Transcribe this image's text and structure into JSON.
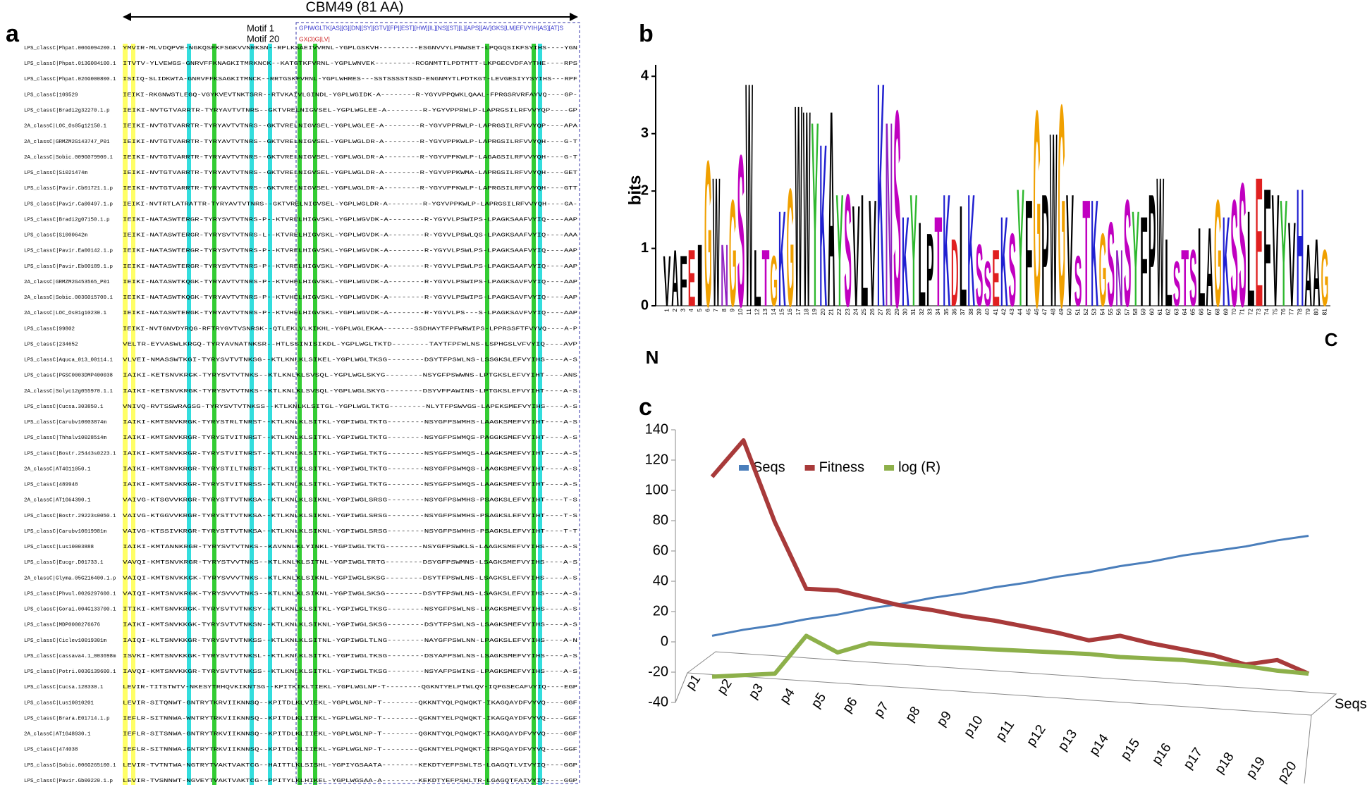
{
  "panel_labels": [
    "a",
    "b",
    "c"
  ],
  "alignment": {
    "title": "CBM49 (81 AA)",
    "motifs": [
      "Motif  1",
      "Motif 20"
    ],
    "patterns": [
      "GPIWGLTK[AS][G][DN][SY][GTV][FP][EST][HW][IL][NS][ST][L][APS][AV]GKS[LM]EFVYIH[AS][AT]S",
      "GX(3)G[LV]"
    ],
    "rows": [
      {
        "name": "LPS_classC|Phpat.006G094200.1",
        "seq": "YMVIR-MLVDQPVE-NGKQSFKFSGKVVNRKSN--RPLKSAEIVVRNL-YGPLGSKVH---------ESGNVVYLPNWSET-LPQGQSIKFSYIHS----YGN"
      },
      {
        "name": "LPS_classC|Phpat.013G084100.1",
        "seq": "ITVTV-YLVEWGS-GNRVFFKNAGKITMRKNCK--KATGTKFVRNL-YGPLWNVEK---------RCGNMTTLPDTMTT-LKPGECVDFAYTHE----RPS"
      },
      {
        "name": "LPS_classC|Phpat.026G000800.1",
        "seq": "ISIIQ-SLIDKWTA-GNRVFFKSAGKITMNCK--RRTGSKFVRNL-YGPLWHRES---SSTSSSSTSSD-ENGNMYTLPDTKGT-LEVGESIYYSYIHS---RPF"
      },
      {
        "name": "LPS_classC|109529",
        "seq": "IEIKI-RKGNWSTLEGQ-VGYKVEVTNKTSRR--RTVKAIVLGINDL-YGPLWGIDK-A--------R-YGYVPPQWKLQAAL-FPRGSRVRFAYVQ----GP-"
      },
      {
        "name": "LPS_classC|Bradi2g32270.1.p",
        "seq": "IEIKI-NVTGTVARRTR-TYRYAVTVTNRS--GKTVRELNIGVSEL-YGPLWGLEE-A--------R-YGYVPPRWLP-LAPRGSILRFVVYQP----GP"
      },
      {
        "name": "2A_classC|LOC_Os05g12150.1",
        "seq": "IEIKI-NVTGTVARRTR-TYRYAVTVTNRS--GKTVRELNIGVSEL-YGPLWGLEE-A--------R-YGYVPPRWLP-LAPRGSILRFVVYQP----APA"
      },
      {
        "name": "2A_classC|GRMZM2G143747_P01",
        "seq": "IEIKI-NVTGTVARRTR-TYRYAVTVTNRS--GKTVRELNIGVSEL-YGPLWGLDR-A--------R-YGYVPPKWLP-LAPRGSILRFVVYQH----G-T"
      },
      {
        "name": "2A_classC|Sobic.009G079900.1",
        "seq": "IEIKI-NVTGTVARRTR-TYRYAVTVTNRS--GKTVRELNIGVSEL-YGPLWGLDR-A--------R-YGYVPPKWLP-LAGAGSILRFVVYQH----G-T"
      },
      {
        "name": "LPS_classC|Si021474m",
        "seq": "IEIKI-NVTGTVARRTR-TYRYAVTVTNRS--GKTVRELNIGVSEL-YGPLWGLDR-A--------R-YGYVPPKWMA-LAPRGSILRFVVYQH----GET"
      },
      {
        "name": "LPS_classC|Pavir.Cb01721.1.p",
        "seq": "IEIKI-NVTGTVARRTR-TYRYAVTVTNRS--GKTVRELNIGVSEL-YGPLWGLDR-A--------R-YGYVPPKWLP-LAPRGSILRFVVYQH----GTT"
      },
      {
        "name": "LPS_classC|Pavir.Ca00497.1.p",
        "seq": "IEIKI-NVTRTLATRATTR-TYRYAVTVTNRS--GKTVRELNIGVSEL-YGPLWGLDR-A--------R-YGYVPPKWLP-LAPRGSILRFVVYQH----GA-"
      },
      {
        "name": "LPS_classC|Bradi2g07150.1.p",
        "seq": "IEIKI-NATASWTERGR-TYRYSVTVTNRS-P--KTVRELHIGVSKL-YGPLWGVDK-A--------R-YGYVLPSWIPS-LPAGKSAAFVYIQ----AAP"
      },
      {
        "name": "LPS_classC|Si000642m",
        "seq": "IEIKI-NATASWTERGR-TYRYSVTVTNRS-L--KTVRELHIGVSKL-YGPLWGVDK-A--------R-YGYVLPSWLQS-LPAGKSAAFVYIQ----AAA"
      },
      {
        "name": "LPS_classC|Pavir.Ea00142.1.p",
        "seq": "IEIKI-NATASWTERGR-TYRYSVTVTNRS-P--KTVRELHIGVSKL-YGPLWGVDK-A--------R-YGYVLPSWLPS-LPAGKSAAFVYIQ----AAP"
      },
      {
        "name": "LPS_classC|Pavir.Eb00189.1.p",
        "seq": "IEIKI-NATASWTERGR-TYRYSVTVTNRS-P--KTVRELHIGVSKL-YGPLWGVDK-A--------R-YGYVLPSWLPS-LPAGKSAAFVYIQ----AAP"
      },
      {
        "name": "2A_classC|GRMZM2G453565_P01",
        "seq": "IEIKI-NATASWTKQGK-TYRYAVTVTNRS-P--KTVHELHIGVSKL-YGPLWGVDK-A--------R-YGYVLPSWIPS-LPAGKSAVFVYIQ----AAP"
      },
      {
        "name": "2A_classC|Sobic.003G015700.1",
        "seq": "IEIKI-NATASWTKQGK-TYRYAVTVTNRS-P--KTVHELHIGVSKL-YGPLWGVDK-A--------R-YGYVLPSWIPS-LPAGKSAVFVYIQ----AAP"
      },
      {
        "name": "2A_classC|LOC_Os01g10230.1",
        "seq": "IEIKI-NATASWTERGK-TYRYAVTVTNRS-P--KTVHELHIGVSKL-YGPLWGVDK-A--------R-YGYVLPS---S-LPAGKSAVFVYIQ----AAP"
      },
      {
        "name": "LPS_classC|99802",
        "seq": "IEIKI-NVTGNVDYRQG-RFTRYGVTVSNRSK--QTLEKLVLKIKHL-YGPLWGLEKAA-------SSDHAYTFPFWRWIPS-LPPRSSFTFVYVQ----A-P"
      },
      {
        "name": "LPS_classC|234652",
        "seq": "VELTR-EYVASWLKRGQ-TYRYAVNATNKSR--HTLSSINISIKDL-YGPLWGLTKTD--------TAYTFPFWLNS-LSPHGSLVFVYIQ----AVP"
      },
      {
        "name": "LPS_classC|Aquca_013_00114.1",
        "seq": "VLVEI-NMASSWTKGI-TYRYSVTVTNKSG--KTLKNLKLSIKEL-YGPLWGLTKSG--------DSYTFPSWLNS-LSSGKSLEFVYIHS----A-S"
      },
      {
        "name": "LPS_classC|PGSC0003DMP400038",
        "seq": "IAIKI-KETSNVKRGK-TYRYSVTVTNKS--KTLKNLKLSVSQL-YGPLWGLSKYG--------NSYGFPSWWNS-LPTGKSLEFVYIHT----ANS"
      },
      {
        "name": "2A_classC|Solyc12g055970.1.1",
        "seq": "IAIKI-KETSNVKRGK-TYRYSVTVTNKS--KTLKNLKLSVSQL-YGPLWGLSKYG--------DSYVFPAWINS-LPTGKSLEFVYIHT----A-S"
      },
      {
        "name": "LPS_classC|Cucsa.303850.1",
        "seq": "VNIVQ-RVTSSWRAGSG-TYRYSVTVTNKSS--KTLKNLKLSITGL-YGPLWGLTKTG--------NLYTFPSWVGS-LAPEKSMEFVYIHS----A-S"
      },
      {
        "name": "LPS_classC|Carubv10003874m",
        "seq": "IAIKI-KMTSNVKRGK-TYRYSTRLTNRST--KTLKNLKLSITKL-YGPIWGLTKTG--------NSYGFPSWMHS-LAAGKSMEFVYIHT----A-S"
      },
      {
        "name": "LPS_classC|Thhalv10028514m",
        "seq": "IAIKI-KMTSNVKRGR-TYRYSTVITNRST--KTLKNLKLSITKL-YGPIWGLTKTG--------NSYGFPSWMQS-PAGGKSMEFVYIHT----A-S"
      },
      {
        "name": "LPS_classC|Bostr.25443s0223.1",
        "seq": "IAIKI-KMTSNVKRGR-TYRYSTVITNRST--KTLKNLKLSITKL-YGPIWGLTKTG--------NSYGFPSWMQS-LAAGKSMEFVYIHT----A-S"
      },
      {
        "name": "2A_classC|AT4G11050.1",
        "seq": "IAIKI-KMTSNVKRGR-TYRYSTILTNRST--KTLKILKLSITKL-YGPIWGLTKTG--------NSYGFPSWMQS-LAAGKSMEFVYIHT----A-S"
      },
      {
        "name": "LPS_classC|489948",
        "seq": "IAIKI-KMTSNVKRGR-TYRYSTVITNRSS--KTLKNLKLSITKL-YGPIWGLTKTG--------NSYGFPSWMQS-LAAGKSMEFVYIHT----A-S"
      },
      {
        "name": "2A_classC|AT1G64390.1",
        "seq": "VAIVG-KTSGVVKRGR-TYRYSTTVTNKSA--KTLKNLKLSIKNL-YGPIWGLSRSG--------NSYGFPSWMHS-PSAGKSLEFVYIHT----T-S"
      },
      {
        "name": "LPS_classC|Bostr.29223s0050.1",
        "seq": "VAIVG-KTGGVVKRGR-TYRYSTTVTNKSA--KTLKNLKLSIKNL-YGPIWGLSRSG--------NSYGFPSWMHS-PSAGKSLEFVYIHT----T-S"
      },
      {
        "name": "LPS_classC|Carubv10019981m",
        "seq": "VAIVG-KTSSIVKRGR-TYRYSTTVTNKSA--KTLKNLKLSIKNL-YGPIWGLSRSG--------NSYGFPSWMHS-PSAGKSLEFVYIHT----T-T"
      },
      {
        "name": "LPS_classC|Lus10003888",
        "seq": "IAIKI-KMTANNKRGR-TYRYSVTVTNKS--KAVNNLKLYINKL-YGPIWGLTKTG--------NSYGFPSWKLS-LAAGKSMEFVYIHS----A-S"
      },
      {
        "name": "LPS_classC|Eucgr.D01733.1",
        "seq": "VAVQI-KMTSNVKRGR-TYRYSTVVTNKS--KTLKNLKLSITNL-YGPIWGLTRTG--------DSYGFPSWMNS-LSAGKSMEFVYIHS----A-S"
      },
      {
        "name": "2A_classC|Glyma.05G216400.1.p",
        "seq": "VAIQI-KMTSNVKKGK-TYRYSVVVTNKS--KTLKNLKLSIKNL-YGPIWGLSKSG--------DSYTFPSWLNS-LSAGKSLEFVYIHS----A-S"
      },
      {
        "name": "LPS_classC|Phvul.002G297600.1",
        "seq": "VAIQI-KMTSNVKRGK-TYRYSVVVTNKS--KTLKNLKLSIKNL-YGPIWGLSKSG--------DSYTFPSWLNS-LSAGKSLEFVYIHS----A-S"
      },
      {
        "name": "LPS_classC|Gorai.004G133700.1",
        "seq": "ITIKI-KMTSNVKRGK-TYRYSVTVTNKSY--KTLKNLKLSITKL-YGPIWGLTKSG--------NSYGFPSWLNS-LPAGKSMEFVYIHS----A-S"
      },
      {
        "name": "LPS_classC|MDP0000276676",
        "seq": "IAIKI-KMTSNVKKGK-TYRYSVTVTNKSN--KTLKNLKLSIKNL-YGPIWGLSKSG--------DSYTFPSWLNS-LSAGKSMEFVYIHS----A-S"
      },
      {
        "name": "LPS_classC|Ciclev10019301m",
        "seq": "IAIQI-KLTSNVKKGR-TYRYSVTVTNKSS--KTLKNLKLSITNL-YGPIWGLTLNG--------NAYGFPSWLNN-LPAGKSLEFVYIHS----A-N"
      },
      {
        "name": "LPS_classC|cassava4.1_003698m",
        "seq": "ISVKI-KMTSNVKKGK-TYRYSVTVTNKSL--KTLKNLKLSITKL-YGPIWGLTKSG--------DSYAFPSWLNS-LSAGKSMEFVYIHS----A-S"
      },
      {
        "name": "LPS_classC|Potri.003G139600.1",
        "seq": "IAVQI-KMTSNVKKGR-TYRYSVTVTNKSS--KTLKNLKLSITKL-YGPIWGLTKSG--------NSYAFPSWINS-LPAGKSMEFVYIHS----A-S"
      },
      {
        "name": "LPS_classC|Cucsa.128330.1",
        "seq": "LEVIR-TITSTWTV-NKESYTRHQVKIKNTSG--KPITKIKLTIEKL-YGPLWGLNP-T--------QGKNTYELPTWLQV-IQPGSECAFVYIQ----EGP"
      },
      {
        "name": "LPS_classC|Lus10010201",
        "seq": "LEVIR-SITQNWT-GNTRYTKRVIIKNNSQ--KPITDLKLVIEKL-YGPLWGLNP-T--------QKKNTYQLPQWQKT-IKAGQAYDFVYVQ----GGF"
      },
      {
        "name": "LPS_classC|Brara.E01714.1.p",
        "seq": "IEFLR-SITNNWA-WNTRYTRKVIIKNNSQ--KPITDLKLIIEKL-YGPLWGLNP-T--------QGKNTYELPQWQKT-IKAGQAYDFVYVQ----GGF"
      },
      {
        "name": "2A_classC|AT1G48930.1",
        "seq": "IEFLR-SITSNWA-GNTRYTRKVIIKNNSQ--KPITDLKLIIEKL-YGPLWGLNP-T--------QGKNTYQLPQWQKT-IKAGQAYDFVYVQ----GGF"
      },
      {
        "name": "LPS_classC|474038",
        "seq": "IEFLR-SITNNWA-GNTRYTRKVIIKNNSQ--KPITDLKLIIEKL-YGPLWGLNP-T--------QGKNTYELPQWQKT-IRPGQAYDFVYVQ----GGF"
      },
      {
        "name": "LPS_classC|Sobic.006G265100.1",
        "seq": "LEVIR-TVTNTWA-NGTRYTVAKTVAKTCG--HAITTLKLSISHL-YGPIYGSAATA--------KEKDTYEFPSWLTS-LGAGQTLVIVYIQ----GGP"
      },
      {
        "name": "LPS_classC|Pavir.Gb00220.1.p",
        "seq": "LEVIR-TVSNNWT-NGVEYTVAKTVAKTCG--PPITYLKLHIKEL-YGPLWGSAA-A--------KEKDTYEFPSWLTR-LGAGQTFAIVYIQ----GGP"
      }
    ]
  },
  "chart_data": [
    {
      "type": "logo",
      "ylabel": "bits",
      "termini": [
        "N",
        "C"
      ],
      "x": [
        1,
        2,
        3,
        4,
        5,
        6,
        7,
        8,
        9,
        10,
        11,
        12,
        13,
        14,
        15,
        16,
        17,
        18,
        19,
        20,
        21,
        22,
        23,
        24,
        25,
        26,
        27,
        28,
        29,
        30,
        31,
        32,
        33,
        34,
        35,
        36,
        37,
        38,
        39,
        40,
        41,
        42,
        43,
        44,
        45,
        46,
        47,
        48,
        49,
        50,
        51,
        52,
        53,
        54,
        55,
        56,
        57,
        58,
        59,
        60,
        61,
        62,
        63,
        64,
        65,
        66,
        67,
        68,
        69,
        70,
        71,
        72,
        73,
        74,
        75,
        76,
        77,
        78,
        79,
        80,
        81
      ],
      "letters": [
        "V",
        "A",
        "F",
        "E",
        "I",
        "G",
        "W",
        "N",
        "G",
        "S",
        "W",
        "L",
        "T",
        "G",
        "K",
        "G",
        "W",
        "W",
        "Y",
        "K",
        "A",
        "Y",
        "S",
        "V",
        "L",
        "V",
        "K",
        "N",
        "S",
        "K",
        "Y",
        "L",
        "P",
        "T",
        "K",
        "D",
        "L",
        "K",
        "S",
        "S",
        "E",
        "K",
        "S",
        "Y",
        "F",
        "G",
        "P",
        "W",
        "G",
        "V",
        "S",
        "T",
        "K",
        "G",
        "S",
        "N",
        "S",
        "Y",
        "F",
        "P",
        "W",
        "L",
        "S",
        "T",
        "S",
        "L",
        "A",
        "G",
        "K",
        "S",
        "S",
        "L",
        "E",
        "F",
        "V",
        "Y",
        "V",
        "H",
        "A",
        "A",
        "G"
      ],
      "values": [
        0.9,
        1.0,
        0.9,
        1.0,
        1.1,
        2.6,
        2.3,
        1.1,
        1.9,
        2.7,
        4.0,
        1.0,
        1.0,
        0.9,
        1.7,
        2.1,
        3.6,
        3.5,
        3.3,
        2.9,
        3.5,
        2.0,
        2.0,
        1.8,
        2.0,
        1.9,
        4.0,
        3.3,
        3.5,
        1.6,
        2.0,
        1.5,
        1.3,
        1.6,
        2.0,
        1.2,
        1.8,
        2.0,
        1.1,
        0.8,
        1.0,
        1.6,
        1.3,
        2.1,
        1.9,
        3.5,
        2.0,
        3.1,
        3.6,
        2.0,
        0.9,
        1.9,
        1.9,
        1.3,
        1.5,
        1.0,
        1.9,
        1.7,
        1.6,
        2.0,
        2.3,
        1.2,
        0.8,
        1.0,
        1.0,
        1.4,
        1.4,
        1.9,
        1.6,
        1.9,
        2.2,
        1.7,
        2.3,
        2.1,
        2.0,
        1.9,
        1.5,
        2.1,
        1.1,
        1.2,
        1.0
      ],
      "letter_colors": {
        "A": "#000000",
        "V": "#000000",
        "L": "#000000",
        "I": "#000000",
        "P": "#000000",
        "W": "#000000",
        "F": "#000000",
        "M": "#000000",
        "S": "#c000c0",
        "T": "#c000c0",
        "G": "#f0a000",
        "Y": "#2eb82e",
        "C": "#2eb82e",
        "K": "#2020d0",
        "R": "#2020d0",
        "H": "#2020d0",
        "D": "#e02020",
        "E": "#e02020",
        "N": "#9020c0",
        "Q": "#9020c0"
      },
      "xlim": [
        0.5,
        81.5
      ],
      "ylim": [
        0,
        4.2
      ],
      "yticks": [
        0,
        1,
        2,
        3,
        4
      ]
    },
    {
      "type": "line",
      "categories": [
        "p1",
        "p2",
        "p3",
        "p4",
        "p5",
        "p6",
        "p7",
        "p8",
        "p9",
        "p10",
        "p11",
        "p12",
        "p13",
        "p14",
        "p15",
        "p16",
        "p17",
        "p18",
        "p19",
        "p20"
      ],
      "series": [
        {
          "name": "Seqs",
          "color": "#4a7ebb",
          "values": [
            4,
            8,
            11,
            15,
            18,
            22,
            25,
            29,
            32,
            36,
            39,
            43,
            46,
            50,
            53,
            57,
            60,
            63,
            67,
            70
          ]
        },
        {
          "name": "Fitness",
          "color": "#a83a3a",
          "values": [
            109,
            133,
            79,
            35,
            34,
            29,
            24,
            21,
            17,
            14,
            10,
            6,
            1,
            4,
            -1,
            -5,
            -9,
            -15,
            -12,
            -21
          ]
        },
        {
          "name": "log (R)",
          "color": "#8db04a",
          "values": [
            -23,
            -22,
            -21,
            4,
            -7,
            -1,
            -2,
            -3,
            -4,
            -5,
            -6,
            -7,
            -8,
            -10,
            -11,
            -12,
            -14,
            -16,
            -19,
            -21
          ]
        }
      ],
      "depth_label": "Seqs",
      "legend": "top",
      "ylim": [
        -40,
        140
      ],
      "yticks": [
        -40,
        -20,
        0,
        20,
        40,
        60,
        80,
        100,
        120,
        140
      ]
    }
  ]
}
